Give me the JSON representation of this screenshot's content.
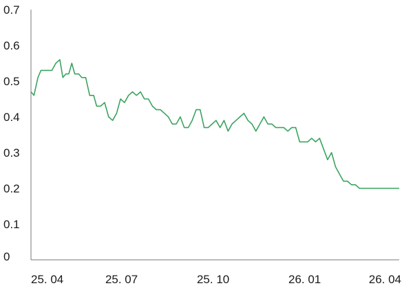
{
  "colors": {
    "line": "#3aa35f",
    "axis": "#777777",
    "text": "#1a1a1a"
  },
  "chart_data": {
    "type": "line",
    "title": "",
    "xlabel": "",
    "ylabel": "",
    "ylim": [
      0,
      0.7
    ],
    "yticks": [
      {
        "value": 0,
        "label": "0"
      },
      {
        "value": 0.1,
        "label": "0.1"
      },
      {
        "value": 0.2,
        "label": "0.2"
      },
      {
        "value": 0.3,
        "label": "0.3"
      },
      {
        "value": 0.4,
        "label": "0.4"
      },
      {
        "value": 0.5,
        "label": "0.5"
      },
      {
        "value": 0.6,
        "label": "0.6"
      },
      {
        "value": 0.7,
        "label": "0.7"
      }
    ],
    "xlim": [
      "2025-04-01",
      "2026-04-06"
    ],
    "xticks": [
      {
        "date": "2025-04-01",
        "label": "25. 04"
      },
      {
        "date": "2025-07-01",
        "label": "25. 07"
      },
      {
        "date": "2025-10-01",
        "label": "25. 10"
      },
      {
        "date": "2026-01-01",
        "label": "26. 01"
      },
      {
        "date": "2026-04-01",
        "label": "26. 04"
      }
    ],
    "grid": false,
    "series": [
      {
        "x": [
          "2025-04-01",
          "2025-04-04",
          "2025-04-08",
          "2025-04-11",
          "2025-04-14",
          "2025-04-17",
          "2025-04-22",
          "2025-04-26",
          "2025-04-30",
          "2025-05-03",
          "2025-05-06",
          "2025-05-09",
          "2025-05-12",
          "2025-05-15",
          "2025-05-19",
          "2025-05-22",
          "2025-05-26",
          "2025-05-30",
          "2025-06-03",
          "2025-06-06",
          "2025-06-10",
          "2025-06-14",
          "2025-06-18",
          "2025-06-22",
          "2025-06-26",
          "2025-06-30",
          "2025-07-04",
          "2025-07-08",
          "2025-07-12",
          "2025-07-16",
          "2025-07-20",
          "2025-07-24",
          "2025-07-28",
          "2025-08-01",
          "2025-08-05",
          "2025-08-09",
          "2025-08-13",
          "2025-08-17",
          "2025-08-21",
          "2025-08-25",
          "2025-08-29",
          "2025-09-02",
          "2025-09-06",
          "2025-09-10",
          "2025-09-14",
          "2025-09-18",
          "2025-09-22",
          "2025-09-26",
          "2025-09-30",
          "2025-10-04",
          "2025-10-08",
          "2025-10-12",
          "2025-10-16",
          "2025-10-20",
          "2025-10-24",
          "2025-10-28",
          "2025-11-01",
          "2025-11-05",
          "2025-11-09",
          "2025-11-13",
          "2025-11-17",
          "2025-11-21",
          "2025-11-25",
          "2025-11-29",
          "2025-12-03",
          "2025-12-07",
          "2025-12-11",
          "2025-12-15",
          "2025-12-19",
          "2025-12-23",
          "2025-12-27",
          "2025-12-31",
          "2026-01-04",
          "2026-01-08",
          "2026-01-12",
          "2026-01-16",
          "2026-01-20",
          "2026-01-24",
          "2026-01-28",
          "2026-02-01",
          "2026-02-05",
          "2026-02-09",
          "2026-02-13",
          "2026-02-17",
          "2026-02-21",
          "2026-02-25",
          "2026-03-01",
          "2026-03-05",
          "2026-03-09",
          "2026-03-13",
          "2026-03-17",
          "2026-03-21",
          "2026-03-25",
          "2026-03-29",
          "2026-04-02",
          "2026-04-06"
        ],
        "values": [
          0.47,
          0.46,
          0.51,
          0.53,
          0.53,
          0.53,
          0.53,
          0.55,
          0.56,
          0.51,
          0.52,
          0.52,
          0.55,
          0.52,
          0.52,
          0.51,
          0.51,
          0.46,
          0.46,
          0.43,
          0.43,
          0.44,
          0.4,
          0.39,
          0.41,
          0.45,
          0.44,
          0.46,
          0.47,
          0.46,
          0.47,
          0.45,
          0.45,
          0.43,
          0.42,
          0.42,
          0.41,
          0.4,
          0.38,
          0.38,
          0.4,
          0.37,
          0.37,
          0.39,
          0.42,
          0.42,
          0.37,
          0.37,
          0.38,
          0.39,
          0.37,
          0.39,
          0.36,
          0.38,
          0.39,
          0.4,
          0.41,
          0.39,
          0.38,
          0.36,
          0.38,
          0.4,
          0.38,
          0.38,
          0.37,
          0.37,
          0.37,
          0.36,
          0.37,
          0.37,
          0.33,
          0.33,
          0.33,
          0.34,
          0.33,
          0.34,
          0.31,
          0.28,
          0.3,
          0.26,
          0.24,
          0.22,
          0.22,
          0.21,
          0.21,
          0.2,
          0.2,
          0.2,
          0.2,
          0.2,
          0.2,
          0.2,
          0.2,
          0.2,
          0.2,
          0.2
        ]
      }
    ]
  }
}
